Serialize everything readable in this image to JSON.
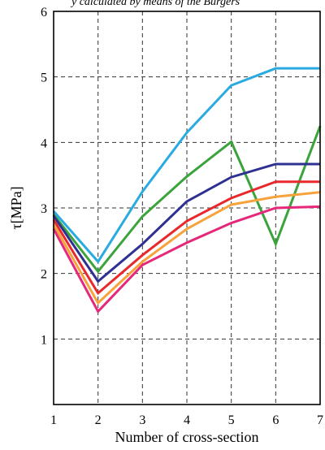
{
  "caption_fragment": "y calculated by means of the Burgers",
  "chart_data": {
    "type": "line",
    "xlabel": "Number of cross-section",
    "ylabel": "τ[MPa]",
    "x": [
      1,
      2,
      3,
      4,
      5,
      6,
      7
    ],
    "xlim": [
      1,
      7
    ],
    "ylim": [
      0,
      6
    ],
    "xticks": [
      "1",
      "2",
      "3",
      "4",
      "5",
      "6",
      "7"
    ],
    "yticks": [
      "1",
      "2",
      "3",
      "4",
      "5",
      "6"
    ],
    "grid": "dashed",
    "series": [
      {
        "color": "#29ABE2",
        "values": [
          2.95,
          2.18,
          3.25,
          4.15,
          4.87,
          5.13,
          5.13
        ]
      },
      {
        "color": "#3BA33B",
        "values": [
          2.9,
          2.03,
          2.87,
          3.48,
          4.01,
          2.45,
          4.25
        ]
      },
      {
        "color": "#2E3192",
        "values": [
          2.88,
          1.88,
          2.45,
          3.1,
          3.47,
          3.67,
          3.67
        ]
      },
      {
        "color": "#E8282B",
        "values": [
          2.82,
          1.7,
          2.28,
          2.8,
          3.15,
          3.4,
          3.4
        ]
      },
      {
        "color": "#F7A23B",
        "values": [
          2.75,
          1.55,
          2.18,
          2.68,
          3.05,
          3.17,
          3.24
        ]
      },
      {
        "color": "#E5287A",
        "values": [
          2.68,
          1.42,
          2.13,
          2.47,
          2.77,
          3.0,
          3.02
        ]
      }
    ]
  }
}
